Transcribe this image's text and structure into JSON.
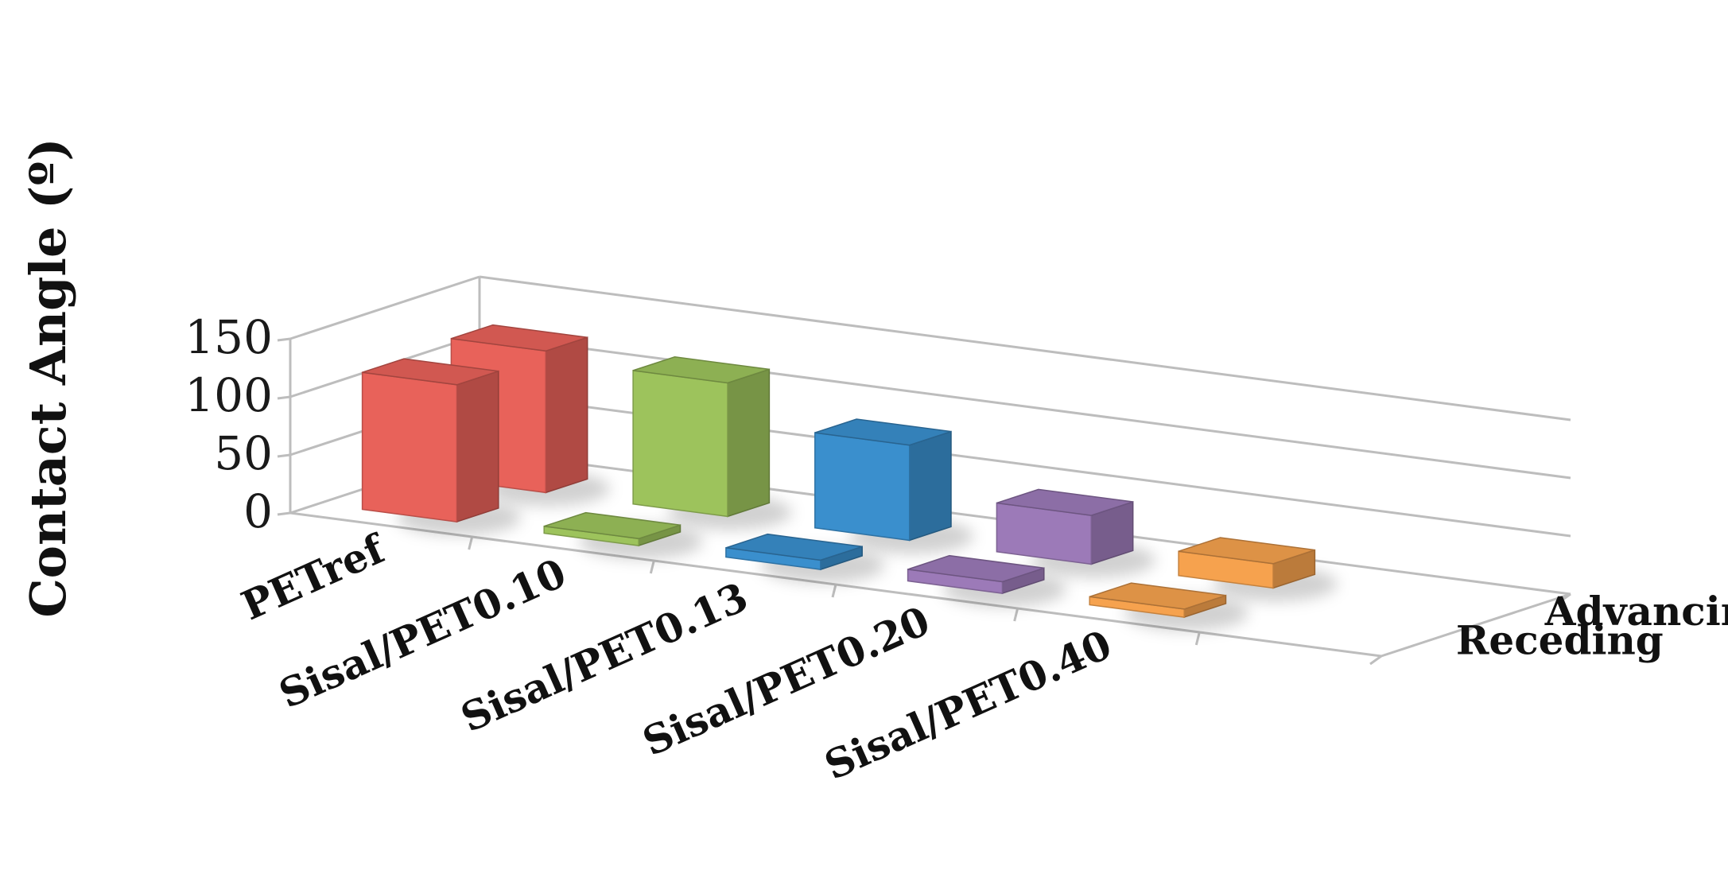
{
  "chart_data": {
    "type": "bar",
    "subtype": "3d-column",
    "title": "",
    "xlabel": "",
    "ylabel": "Contact Angle (º)",
    "ylim": [
      0,
      150
    ],
    "yticks": [
      0,
      50,
      100,
      150
    ],
    "grid": true,
    "categories": [
      "PETref",
      "Sisal/PET0.10",
      "Sisal/PET0.13",
      "Sisal/PET0.20",
      "Sisal/PET0.40"
    ],
    "series": [
      {
        "name": "Receding",
        "values": [
          118,
          6,
          8,
          10,
          7
        ]
      },
      {
        "name": "Advancing",
        "values": [
          122,
          115,
          82,
          42,
          21
        ]
      }
    ],
    "colors": [
      "#E8625A",
      "#9DC35C",
      "#3A8FCD",
      "#9C7AB8",
      "#F6A24E"
    ]
  }
}
